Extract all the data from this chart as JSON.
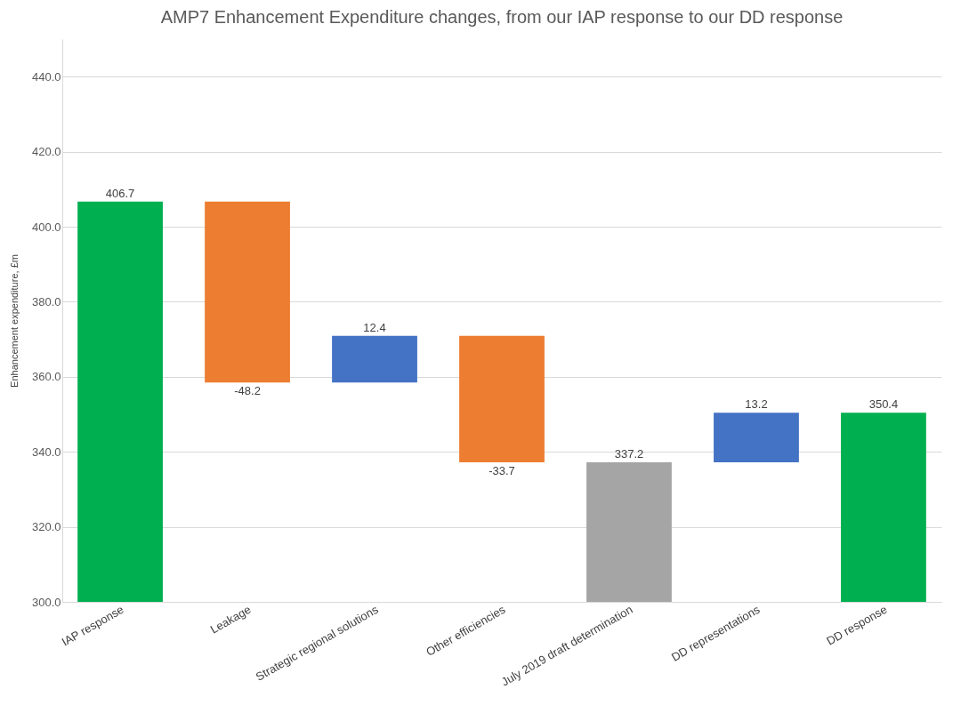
{
  "chart_data": {
    "type": "bar",
    "title": "AMP7 Enhancement Expenditure changes, from our IAP response to our DD response",
    "ylabel": "Enhancement expenditure, £m",
    "categories": [
      "IAP response",
      "Leakage",
      "Strategic regional solutions",
      "Other efficiencies",
      "July 2019 draft determination",
      "DD representations",
      "DD response"
    ],
    "values": [
      406.7,
      -48.2,
      12.4,
      -33.7,
      337.2,
      13.2,
      350.4
    ],
    "base": [
      null,
      406.7,
      358.5,
      370.9,
      null,
      337.2,
      null
    ],
    "colors": [
      "#00b050",
      "#ed7d31",
      "#4472c4",
      "#ed7d31",
      "#a5a5a5",
      "#4472c4",
      "#00b050"
    ],
    "ylim": [
      300,
      450
    ],
    "yticks": [
      {
        "value": 300,
        "label": "300.0"
      },
      {
        "value": 320,
        "label": "320.0"
      },
      {
        "value": 340,
        "label": "340.0"
      },
      {
        "value": 360,
        "label": "360.0"
      },
      {
        "value": 380,
        "label": "380.0"
      },
      {
        "value": 400,
        "label": "400.0"
      },
      {
        "value": 420,
        "label": "420.0"
      },
      {
        "value": 440,
        "label": "440.0"
      }
    ],
    "grid": "y",
    "data_labels": true
  }
}
